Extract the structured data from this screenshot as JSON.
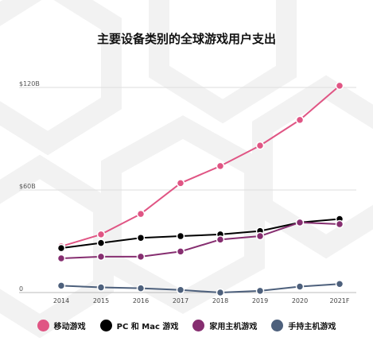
{
  "chart_data": {
    "type": "line",
    "title": "主要设备类别的全球游戏用户支出",
    "categories": [
      "2014",
      "2015",
      "2016",
      "2017",
      "2018",
      "2019",
      "2020",
      "2021F"
    ],
    "yticks": [
      "$120B",
      "$60B",
      "0"
    ],
    "ylim": [
      0,
      120
    ],
    "grid": true,
    "legend_position": "bottom",
    "series": [
      {
        "name": "移动游戏",
        "color": "#e05584",
        "values": [
          27,
          34,
          46,
          64,
          74,
          86,
          101,
          121
        ]
      },
      {
        "name": "PC 和 Mac 游戏",
        "color": "#000000",
        "values": [
          26,
          29,
          32,
          33,
          34,
          36,
          41,
          43
        ]
      },
      {
        "name": "家用主机游戏",
        "color": "#862e70",
        "values": [
          20,
          21,
          21,
          24,
          31,
          33,
          41,
          40
        ]
      },
      {
        "name": "手持主机游戏",
        "color": "#4d607c",
        "values": [
          4,
          3,
          2.5,
          1.5,
          0,
          1,
          3.5,
          5
        ]
      }
    ]
  }
}
